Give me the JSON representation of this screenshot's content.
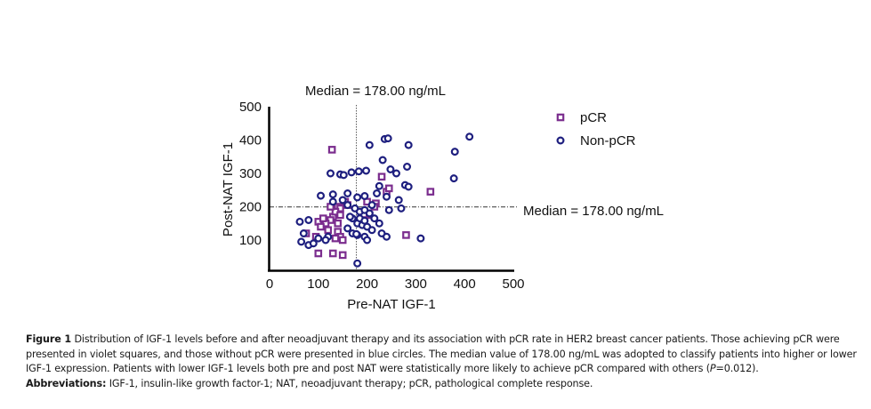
{
  "chart_data": {
    "type": "scatter",
    "title": "",
    "xlabel": "Pre-NAT IGF-1",
    "ylabel": "Post-NAT IGF-1",
    "xlim": [
      0,
      500
    ],
    "ylim": [
      0,
      500
    ],
    "xticks": [
      0,
      100,
      200,
      300,
      400,
      500
    ],
    "yticks": [
      100,
      200,
      300,
      400,
      500
    ],
    "grid": false,
    "legend_position": "top-right",
    "annotations": {
      "vertical_median_label": "Median = 178.00 ng/mL",
      "horizontal_median_label": "Median = 178.00 ng/mL",
      "median_x": 178,
      "median_y": 178
    },
    "series": [
      {
        "name": "pCR",
        "marker": "square",
        "color": "#7b2d8e",
        "points": [
          [
            128,
            371
          ],
          [
            100,
            60
          ],
          [
            95,
            110
          ],
          [
            75,
            120
          ],
          [
            100,
            155
          ],
          [
            130,
            170
          ],
          [
            140,
            200
          ],
          [
            145,
            195
          ],
          [
            135,
            185
          ],
          [
            125,
            160
          ],
          [
            115,
            150
          ],
          [
            120,
            130
          ],
          [
            140,
            125
          ],
          [
            145,
            110
          ],
          [
            135,
            105
          ],
          [
            150,
            100
          ],
          [
            130,
            60
          ],
          [
            150,
            55
          ],
          [
            105,
            140
          ],
          [
            110,
            165
          ],
          [
            155,
            215
          ],
          [
            145,
            175
          ],
          [
            160,
            205
          ],
          [
            125,
            200
          ],
          [
            140,
            150
          ],
          [
            190,
            160
          ],
          [
            200,
            215
          ],
          [
            218,
            210
          ],
          [
            230,
            290
          ],
          [
            240,
            245
          ],
          [
            245,
            255
          ],
          [
            280,
            115
          ],
          [
            330,
            245
          ],
          [
            215,
            200
          ],
          [
            205,
            175
          ]
        ]
      },
      {
        "name": "Non-pCR",
        "marker": "circle",
        "color": "#1e1f7f",
        "points": [
          [
            125,
            300
          ],
          [
            145,
            297
          ],
          [
            152,
            295
          ],
          [
            168,
            303
          ],
          [
            183,
            306
          ],
          [
            198,
            308
          ],
          [
            205,
            385
          ],
          [
            236,
            403
          ],
          [
            243,
            405
          ],
          [
            285,
            385
          ],
          [
            232,
            340
          ],
          [
            225,
            262
          ],
          [
            248,
            312
          ],
          [
            260,
            300
          ],
          [
            282,
            320
          ],
          [
            278,
            265
          ],
          [
            285,
            260
          ],
          [
            380,
            365
          ],
          [
            410,
            410
          ],
          [
            378,
            285
          ],
          [
            130,
            237
          ],
          [
            105,
            233
          ],
          [
            160,
            240
          ],
          [
            180,
            228
          ],
          [
            195,
            232
          ],
          [
            160,
            205
          ],
          [
            175,
            195
          ],
          [
            185,
            185
          ],
          [
            195,
            190
          ],
          [
            205,
            180
          ],
          [
            170,
            165
          ],
          [
            180,
            150
          ],
          [
            190,
            145
          ],
          [
            200,
            140
          ],
          [
            210,
            130
          ],
          [
            170,
            120
          ],
          [
            180,
            115
          ],
          [
            195,
            110
          ],
          [
            230,
            120
          ],
          [
            240,
            110
          ],
          [
            180,
            30
          ],
          [
            62,
            155
          ],
          [
            80,
            160
          ],
          [
            70,
            120
          ],
          [
            65,
            95
          ],
          [
            80,
            85
          ],
          [
            90,
            90
          ],
          [
            100,
            105
          ],
          [
            120,
            110
          ],
          [
            115,
            100
          ],
          [
            130,
            215
          ],
          [
            150,
            220
          ],
          [
            165,
            170
          ],
          [
            185,
            165
          ],
          [
            195,
            158
          ],
          [
            215,
            165
          ],
          [
            225,
            150
          ],
          [
            245,
            190
          ],
          [
            270,
            195
          ],
          [
            265,
            220
          ],
          [
            310,
            105
          ],
          [
            178,
            118
          ],
          [
            160,
            135
          ],
          [
            200,
            100
          ],
          [
            210,
            205
          ],
          [
            220,
            240
          ],
          [
            240,
            230
          ]
        ]
      }
    ]
  },
  "caption": {
    "figure_label": "Figure 1",
    "figure_text": " Distribution of IGF-1 levels before and after neoadjuvant therapy and its association with pCR rate in HER2 breast cancer patients. Those achieving pCR were presented in violet squares, and those without pCR were presented in blue circles. The median value of 178.00 ng/mL was adopted to classify patients into higher or lower IGF-1 expression. Patients with lower IGF-1 levels both pre and post NAT were statistically more likely to achieve pCR compared with others (",
    "p_italic": "P",
    "p_value_text": "=0.012).",
    "abbrev_label": "Abbreviations:",
    "abbrev_text": " IGF-1, insulin-like growth factor-1; NAT, neoadjuvant therapy; pCR, pathological complete response."
  }
}
